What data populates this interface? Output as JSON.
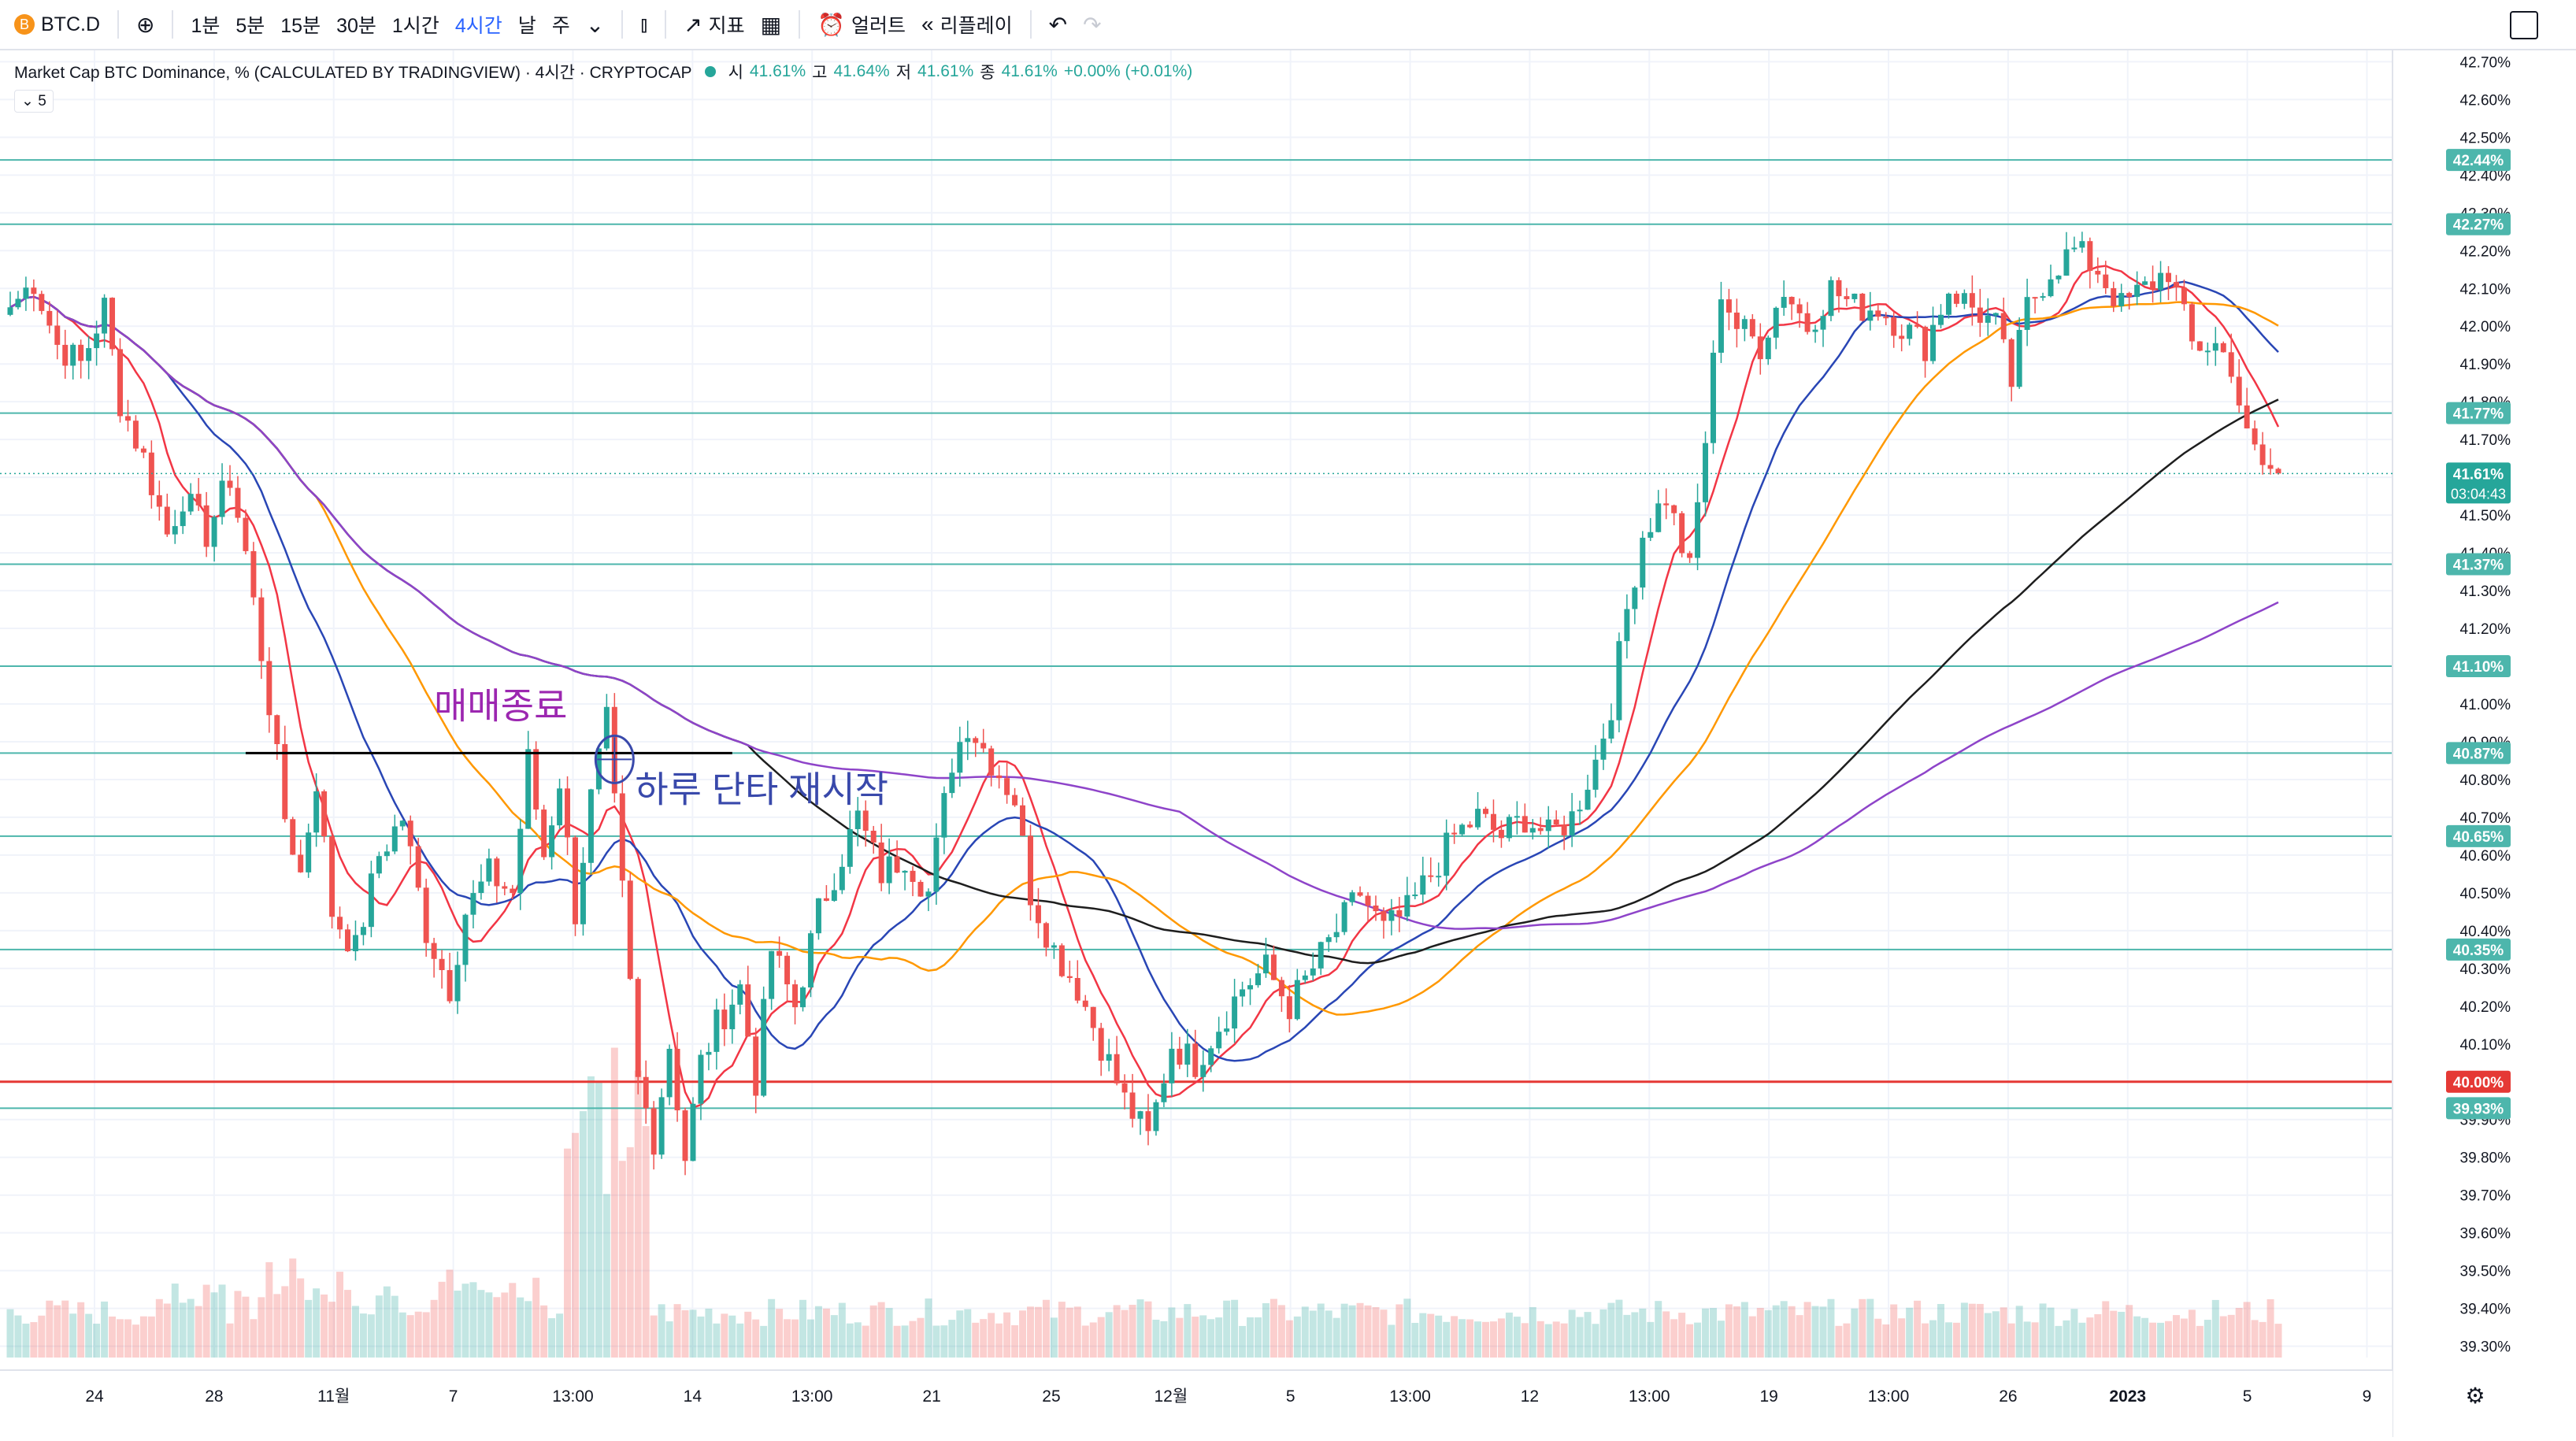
{
  "toolbar": {
    "symbol": "BTC.D",
    "symbol_badge": "B",
    "intervals": [
      "1분",
      "5분",
      "15분",
      "30분",
      "1시간",
      "4시간",
      "날",
      "주"
    ],
    "active_interval": "4시간",
    "indicators_label": "지표",
    "alert_label": "얼러트",
    "replay_label": "리플레이"
  },
  "legend": {
    "title": "Market Cap BTC Dominance, % (CALCULATED BY TRADINGVIEW) · 4시간 · CRYPTOCAP",
    "open_label": "시",
    "open_value": "41.61%",
    "high_label": "고",
    "high_value": "41.64%",
    "low_label": "저",
    "low_value": "41.61%",
    "close_label": "종",
    "close_value": "41.61%",
    "change": "+0.00% (+0.01%)",
    "collapsed_count": "5"
  },
  "colors": {
    "up": "#26a69a",
    "down": "#ef5350",
    "ma_red": "#f23645",
    "ma_blue": "#2946b5",
    "ma_orange": "#ff9800",
    "ma_black": "#1e1e1e",
    "ma_purple": "#8e44c9",
    "level_line": "#4db6ac",
    "key_level": "#e53935",
    "annotation_purple": "#9c27b0",
    "annotation_blue": "#3949ab"
  },
  "chart_data": {
    "type": "candlestick",
    "y_axis": {
      "range": [
        39.27,
        42.73
      ],
      "ticks": [
        "42.70%",
        "42.60%",
        "42.50%",
        "42.40%",
        "42.30%",
        "42.20%",
        "42.10%",
        "42.00%",
        "41.90%",
        "41.80%",
        "41.70%",
        "41.60%",
        "41.50%",
        "41.40%",
        "41.30%",
        "41.20%",
        "41.10%",
        "41.00%",
        "40.90%",
        "40.80%",
        "40.70%",
        "40.60%",
        "40.50%",
        "40.40%",
        "40.30%",
        "40.20%",
        "40.10%",
        "40.00%",
        "39.90%",
        "39.80%",
        "39.70%",
        "39.60%",
        "39.50%",
        "39.40%",
        "39.30%"
      ]
    },
    "x_axis": {
      "labels": [
        "24",
        "28",
        "11월",
        "7",
        "13:00",
        "14",
        "13:00",
        "21",
        "25",
        "12월",
        "5",
        "13:00",
        "12",
        "13:00",
        "19",
        "13:00",
        "26",
        "2023",
        "5",
        "9"
      ]
    },
    "horizontal_levels": [
      {
        "value": 42.44,
        "label": "42.44%"
      },
      {
        "value": 42.27,
        "label": "42.27%"
      },
      {
        "value": 41.77,
        "label": "41.77%"
      },
      {
        "value": 41.37,
        "label": "41.37%"
      },
      {
        "value": 41.1,
        "label": "41.10%"
      },
      {
        "value": 40.87,
        "label": "40.87%"
      },
      {
        "value": 40.65,
        "label": "40.65%"
      },
      {
        "value": 40.35,
        "label": "40.35%"
      },
      {
        "value": 39.93,
        "label": "39.93%"
      }
    ],
    "key_level": {
      "value": 40.0,
      "label": "40.00%"
    },
    "last_price": {
      "value": 41.61,
      "label": "41.61%",
      "countdown": "03:04:43"
    },
    "trend_line": {
      "value": 40.87,
      "from_bar": 30,
      "to_bar": 92
    },
    "annotations": {
      "exit_text": "매매종료",
      "restart_text": "하루 단타 재시작"
    },
    "close_path": [
      [
        0,
        42.05
      ],
      [
        3,
        42.12
      ],
      [
        6,
        41.95
      ],
      [
        9,
        41.9
      ],
      [
        12,
        42.05
      ],
      [
        14,
        41.8
      ],
      [
        17,
        41.65
      ],
      [
        20,
        41.45
      ],
      [
        22,
        41.55
      ],
      [
        25,
        41.45
      ],
      [
        28,
        41.6
      ],
      [
        30,
        41.4
      ],
      [
        33,
        41.0
      ],
      [
        35,
        40.7
      ],
      [
        37,
        40.55
      ],
      [
        39,
        40.8
      ],
      [
        41,
        40.45
      ],
      [
        44,
        40.35
      ],
      [
        47,
        40.6
      ],
      [
        50,
        40.7
      ],
      [
        53,
        40.4
      ],
      [
        56,
        40.25
      ],
      [
        58,
        40.45
      ],
      [
        61,
        40.55
      ],
      [
        64,
        40.5
      ],
      [
        66,
        40.85
      ],
      [
        68,
        40.6
      ],
      [
        70,
        40.8
      ],
      [
        72,
        40.45
      ],
      [
        74,
        40.75
      ],
      [
        76,
        40.95
      ],
      [
        78,
        40.5
      ],
      [
        80,
        40.0
      ],
      [
        82,
        39.85
      ],
      [
        84,
        40.1
      ],
      [
        86,
        39.8
      ],
      [
        88,
        40.05
      ],
      [
        90,
        40.15
      ],
      [
        93,
        40.25
      ],
      [
        95,
        40.0
      ],
      [
        97,
        40.35
      ],
      [
        100,
        40.2
      ],
      [
        103,
        40.45
      ],
      [
        106,
        40.6
      ],
      [
        108,
        40.7
      ],
      [
        111,
        40.55
      ],
      [
        114,
        40.6
      ],
      [
        117,
        40.5
      ],
      [
        120,
        40.85
      ],
      [
        122,
        40.95
      ],
      [
        125,
        40.85
      ],
      [
        128,
        40.75
      ],
      [
        130,
        40.5
      ],
      [
        133,
        40.35
      ],
      [
        136,
        40.25
      ],
      [
        139,
        40.1
      ],
      [
        142,
        39.95
      ],
      [
        145,
        39.85
      ],
      [
        148,
        40.1
      ],
      [
        151,
        40.05
      ],
      [
        154,
        40.15
      ],
      [
        157,
        40.25
      ],
      [
        160,
        40.3
      ],
      [
        163,
        40.2
      ],
      [
        166,
        40.3
      ],
      [
        169,
        40.4
      ],
      [
        172,
        40.5
      ],
      [
        175,
        40.4
      ],
      [
        178,
        40.45
      ],
      [
        181,
        40.55
      ],
      [
        184,
        40.65
      ],
      [
        187,
        40.7
      ],
      [
        190,
        40.65
      ],
      [
        193,
        40.7
      ],
      [
        196,
        40.65
      ],
      [
        199,
        40.7
      ],
      [
        202,
        40.85
      ],
      [
        204,
        41.0
      ],
      [
        206,
        41.25
      ],
      [
        208,
        41.45
      ],
      [
        211,
        41.55
      ],
      [
        214,
        41.35
      ],
      [
        216,
        41.7
      ],
      [
        218,
        42.1
      ],
      [
        220,
        42.0
      ],
      [
        223,
        41.95
      ],
      [
        226,
        42.1
      ],
      [
        229,
        42.0
      ],
      [
        232,
        42.1
      ],
      [
        235,
        42.05
      ],
      [
        238,
        42.05
      ],
      [
        241,
        42.0
      ],
      [
        244,
        41.95
      ],
      [
        247,
        42.1
      ],
      [
        250,
        42.05
      ],
      [
        253,
        42.0
      ],
      [
        255,
        41.85
      ],
      [
        257,
        42.05
      ],
      [
        260,
        42.15
      ],
      [
        263,
        42.2
      ],
      [
        266,
        42.15
      ],
      [
        269,
        42.05
      ],
      [
        272,
        42.1
      ],
      [
        275,
        42.15
      ],
      [
        278,
        41.95
      ],
      [
        281,
        41.95
      ],
      [
        283,
        41.9
      ],
      [
        285,
        41.7
      ],
      [
        287,
        41.63
      ],
      [
        289,
        41.61
      ]
    ],
    "bars": 290,
    "moving_averages": [
      {
        "color_key": "ma_red",
        "period": 8
      },
      {
        "color_key": "ma_blue",
        "period": 21
      },
      {
        "color_key": "ma_orange",
        "period": 40
      },
      {
        "color_key": "ma_black",
        "period": 95
      },
      {
        "color_key": "ma_purple",
        "period": 150
      }
    ]
  }
}
